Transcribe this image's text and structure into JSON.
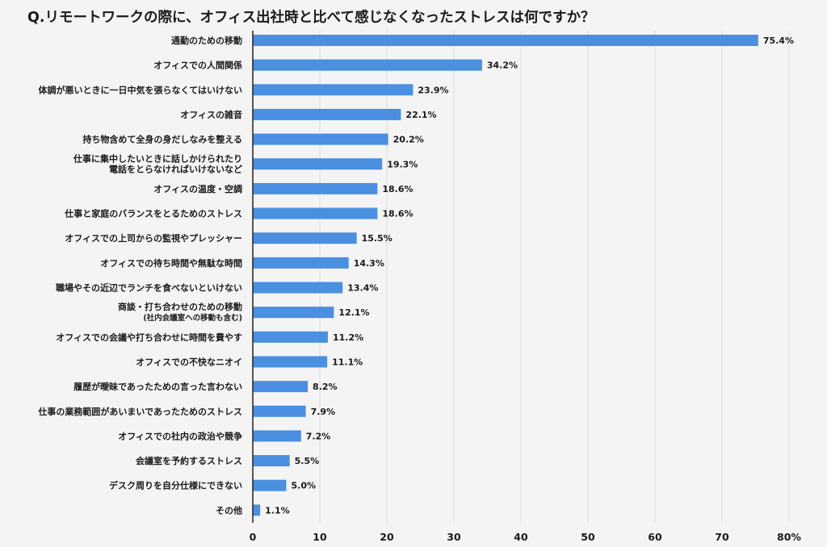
{
  "chart_data": {
    "type": "bar",
    "orientation": "horizontal",
    "title": "Q.リモートワークの際に、オフィス出社時と比べて感じなくなったストレスは何ですか？",
    "categories": [
      [
        "通勤のための移動"
      ],
      [
        "オフィスでの人間関係"
      ],
      [
        "体調が悪いときに一日中気を張らなくてはいけない"
      ],
      [
        "オフィスの雑音"
      ],
      [
        "持ち物含めて全身の身だしなみを整える"
      ],
      [
        "仕事に集中したいときに話しかけられたり",
        "電話をとらなければいけないなど"
      ],
      [
        "オフィスの温度・空調"
      ],
      [
        "仕事と家庭のバランスをとるためのストレス"
      ],
      [
        "オフィスでの上司からの監視やプレッシャー"
      ],
      [
        "オフィスでの待ち時間や無駄な時間"
      ],
      [
        "職場やその近辺でランチを食べないといけない"
      ],
      [
        "商談・打ち合わせのための移動",
        "(社内会議室への移動も含む)"
      ],
      [
        "オフィスでの会議や打ち合わせに時間を費やす"
      ],
      [
        "オフィスでの不快なニオイ"
      ],
      [
        "履歴が曖昧であったための言った言わない"
      ],
      [
        "仕事の業務範囲があいまいであったためのストレス"
      ],
      [
        "オフィスでの社内の政治や競争"
      ],
      [
        "会議室を予約するストレス"
      ],
      [
        "デスク周りを自分仕様にできない"
      ],
      [
        "その他"
      ]
    ],
    "values": [
      75.4,
      34.2,
      23.9,
      22.1,
      20.2,
      19.3,
      18.6,
      18.6,
      15.5,
      14.3,
      13.4,
      12.1,
      11.2,
      11.1,
      8.2,
      7.9,
      7.2,
      5.5,
      5.0,
      1.1
    ],
    "value_labels": [
      "75.4%",
      "34.2%",
      "23.9%",
      "22.1%",
      "20.2%",
      "19.3%",
      "18.6%",
      "18.6%",
      "15.5%",
      "14.3%",
      "13.4%",
      "12.1%",
      "11.2%",
      "11.1%",
      "8.2%",
      "7.9%",
      "7.2%",
      "5.5%",
      "5.0%",
      "1.1%"
    ],
    "xlim": [
      0,
      80
    ],
    "x_ticks": [
      0,
      10,
      20,
      30,
      40,
      50,
      60,
      70,
      80
    ],
    "x_tick_labels": [
      "0",
      "10",
      "20",
      "30",
      "40",
      "50",
      "60",
      "70",
      "80%"
    ],
    "grid": true,
    "bar_color": "#4a8fe0"
  }
}
